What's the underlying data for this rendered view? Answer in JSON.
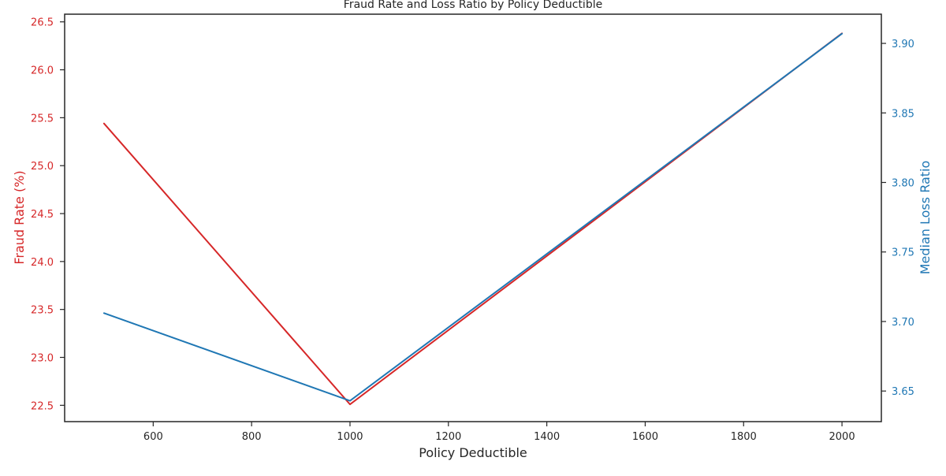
{
  "chart_data": {
    "type": "line",
    "title": "Fraud Rate and Loss Ratio by Policy Deductible",
    "xlabel": "Policy Deductible",
    "ylabel_left": "Fraud Rate (%)",
    "ylabel_right": "Median Loss Ratio",
    "xlim": [
      420,
      2080
    ],
    "ylim_left": [
      22.33,
      26.58
    ],
    "ylim_right": [
      3.628,
      3.921
    ],
    "x_ticks": [
      600,
      800,
      1000,
      1200,
      1400,
      1600,
      1800,
      2000
    ],
    "x_tick_labels": [
      "600",
      "800",
      "1000",
      "1200",
      "1400",
      "1600",
      "1800",
      "2000"
    ],
    "y_left_ticks": [
      22.5,
      23.0,
      23.5,
      24.0,
      24.5,
      25.0,
      25.5,
      26.0,
      26.5
    ],
    "y_left_tick_labels": [
      "22.5",
      "23.0",
      "23.5",
      "24.0",
      "24.5",
      "25.0",
      "25.5",
      "26.0",
      "26.5"
    ],
    "y_right_ticks": [
      3.65,
      3.7,
      3.75,
      3.8,
      3.85,
      3.9
    ],
    "y_right_tick_labels": [
      "3.65",
      "3.70",
      "3.75",
      "3.80",
      "3.85",
      "3.90"
    ],
    "grid": false,
    "series": [
      {
        "name": "Fraud Rate (%)",
        "axis": "left",
        "color": "#d62728",
        "x": [
          500,
          1000,
          2000
        ],
        "values": [
          25.44,
          22.51,
          26.38
        ]
      },
      {
        "name": "Median Loss Ratio",
        "axis": "right",
        "color": "#1f77b4",
        "x": [
          500,
          1000,
          2000
        ],
        "values": [
          3.706,
          3.643,
          3.907
        ]
      }
    ],
    "colors": {
      "left_axis": "#d62728",
      "right_axis": "#1f77b4",
      "axis_text": "#262626"
    }
  }
}
